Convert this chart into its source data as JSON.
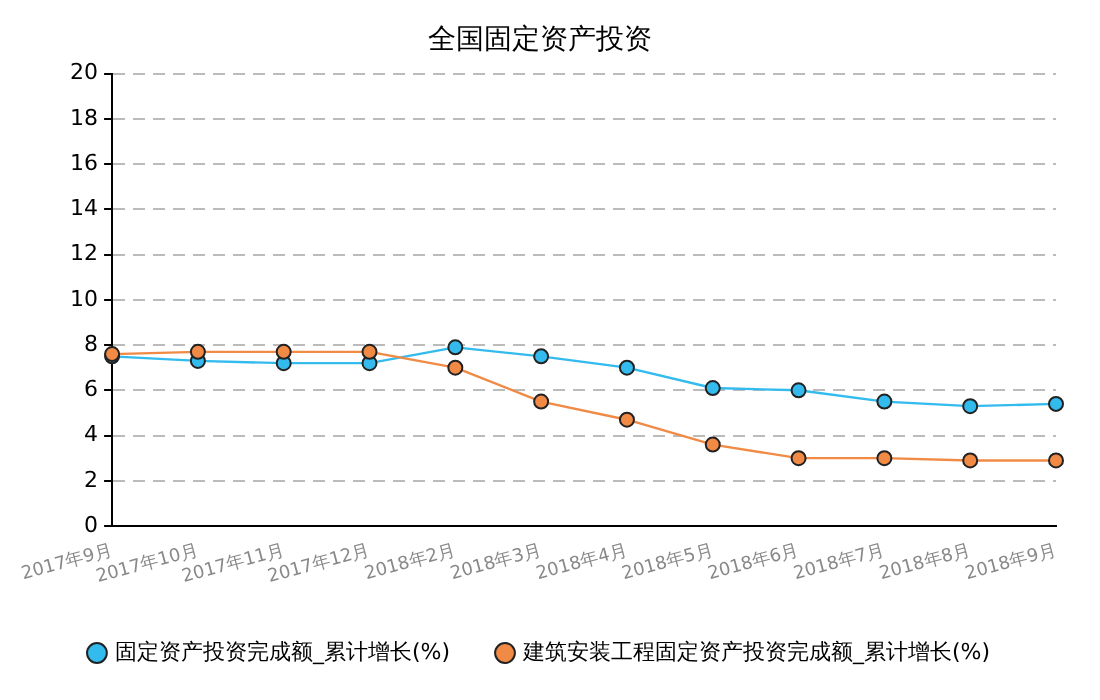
{
  "chart_data": {
    "type": "line",
    "title": "全国固定资产投资",
    "categories": [
      "2017年9月",
      "2017年10月",
      "2017年11月",
      "2017年12月",
      "2018年2月",
      "2018年3月",
      "2018年4月",
      "2018年5月",
      "2018年6月",
      "2018年7月",
      "2018年8月",
      "2018年9月"
    ],
    "series": [
      {
        "name": "固定资产投资完成额_累计增长(%)",
        "color": "#33bbee",
        "values": [
          7.5,
          7.3,
          7.2,
          7.2,
          7.9,
          7.5,
          7.0,
          6.1,
          6.0,
          5.5,
          5.3,
          5.4
        ]
      },
      {
        "name": "建筑安装工程固定资产投资完成额_累计增长(%)",
        "color": "#f08a45",
        "values": [
          7.6,
          7.7,
          7.7,
          7.7,
          7.0,
          5.5,
          4.7,
          3.6,
          3.0,
          3.0,
          2.9,
          2.9
        ]
      }
    ],
    "ylim": [
      0,
      20
    ],
    "yticks": [
      0,
      2,
      4,
      6,
      8,
      10,
      12,
      14,
      16,
      18,
      20
    ],
    "grid": "y",
    "legend": "bottom",
    "marker": "circle",
    "line_style": "solid"
  }
}
